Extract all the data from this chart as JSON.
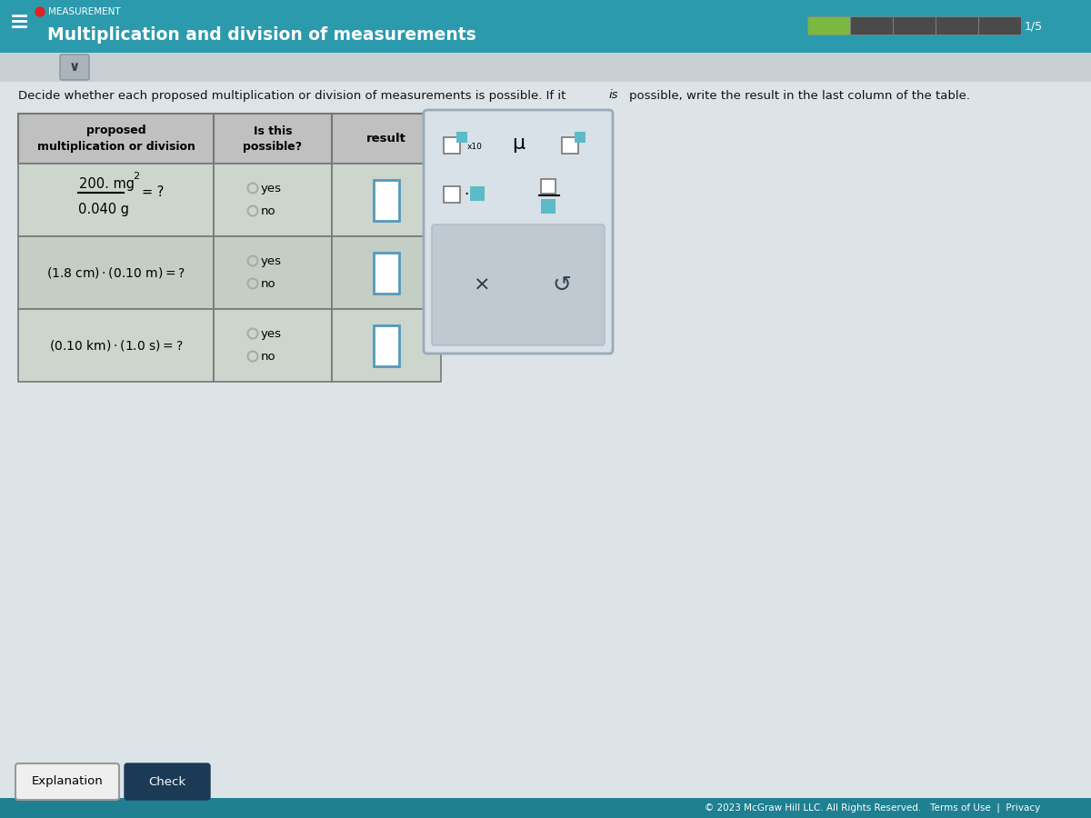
{
  "header_bg": "#2b9aad",
  "header_text": "Multiplication and division of measurements",
  "body_bg": "#dde4e8",
  "instruction": "Decide whether each proposed multiplication or division of measurements is possible. If it",
  "instruction2": "is",
  "instruction3": "possible, write the result in the last column of the table.",
  "col_proposed_header": "proposed\nmultiplication or division",
  "col_possible_header": "Is this\npossible?",
  "col_result_header": "result",
  "table_header_bg": "#c0c0c0",
  "row_bgs": [
    "#cdd6cc",
    "#c5cec5",
    "#cdd6cc"
  ],
  "input_box_border": "#5599bb",
  "radio_color": "#aaaaaa",
  "footer_text": "© 2023 McGraw Hill LLC. All Rights Reserved.   Terms of Use  |  Privacy",
  "footer_bg": "#1e8090",
  "progress_filled": "#7ab840",
  "progress_empty": "#4a4a4a",
  "btn_explanation_bg": "#efefef",
  "btn_check_bg": "#1a3a55",
  "panel_bg": "#d8e0e8",
  "panel_border": "#9aabb8",
  "panel_bottom_bg": "#c0c8d0",
  "teal_box": "#5bbbc8",
  "subheader_bg": "#c8d0d4",
  "chevron_bg": "#aab4ba"
}
